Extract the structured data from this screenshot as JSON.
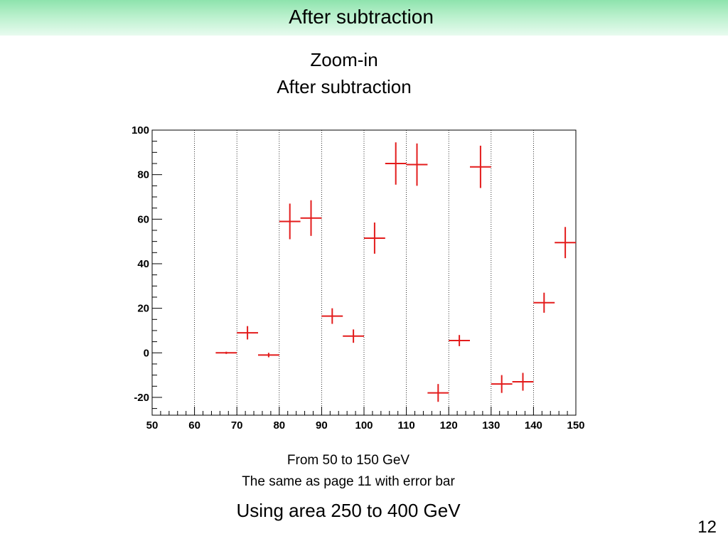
{
  "slide": {
    "title": "After subtraction",
    "page_number": "12"
  },
  "chart_heading": {
    "line1": "Zoom-in",
    "line2": "After subtraction"
  },
  "notes": {
    "line1": "From 50 to 150 GeV",
    "line2": "The same as page 11 with error bar",
    "line3": "Using area 250 to 400 GeV"
  },
  "colors": {
    "markers": "#e31c1c",
    "title_bar_top": "#8ee3ad",
    "title_bar_bottom": "#e8fbef"
  },
  "chart_data": {
    "type": "scatter",
    "title": "",
    "xlabel": "",
    "ylabel": "",
    "xlim": [
      50,
      150
    ],
    "ylim": [
      -28,
      100
    ],
    "x_ticks": [
      50,
      60,
      70,
      80,
      90,
      100,
      110,
      120,
      130,
      140,
      150
    ],
    "y_ticks": [
      -20,
      0,
      20,
      40,
      60,
      80,
      100
    ],
    "vertical_grid": true,
    "bin_width": 5,
    "points": [
      {
        "x": 67.5,
        "y": 0,
        "yerr": 0.5
      },
      {
        "x": 72.5,
        "y": 9,
        "yerr": 3
      },
      {
        "x": 77.5,
        "y": -1,
        "yerr": 1
      },
      {
        "x": 82.5,
        "y": 59,
        "yerr": 8
      },
      {
        "x": 87.5,
        "y": 60.5,
        "yerr": 8
      },
      {
        "x": 92.5,
        "y": 16.5,
        "yerr": 3.5
      },
      {
        "x": 97.5,
        "y": 7.5,
        "yerr": 3
      },
      {
        "x": 102.5,
        "y": 51.5,
        "yerr": 7
      },
      {
        "x": 107.5,
        "y": 85,
        "yerr": 9.5
      },
      {
        "x": 112.5,
        "y": 84.5,
        "yerr": 9.5
      },
      {
        "x": 117.5,
        "y": -18,
        "yerr": 4
      },
      {
        "x": 122.5,
        "y": 5.5,
        "yerr": 2.5
      },
      {
        "x": 127.5,
        "y": 83.5,
        "yerr": 9.5
      },
      {
        "x": 132.5,
        "y": -14,
        "yerr": 4
      },
      {
        "x": 137.5,
        "y": -13,
        "yerr": 4
      },
      {
        "x": 142.5,
        "y": 22.5,
        "yerr": 4.5
      },
      {
        "x": 147.5,
        "y": 49.5,
        "yerr": 7
      }
    ]
  }
}
